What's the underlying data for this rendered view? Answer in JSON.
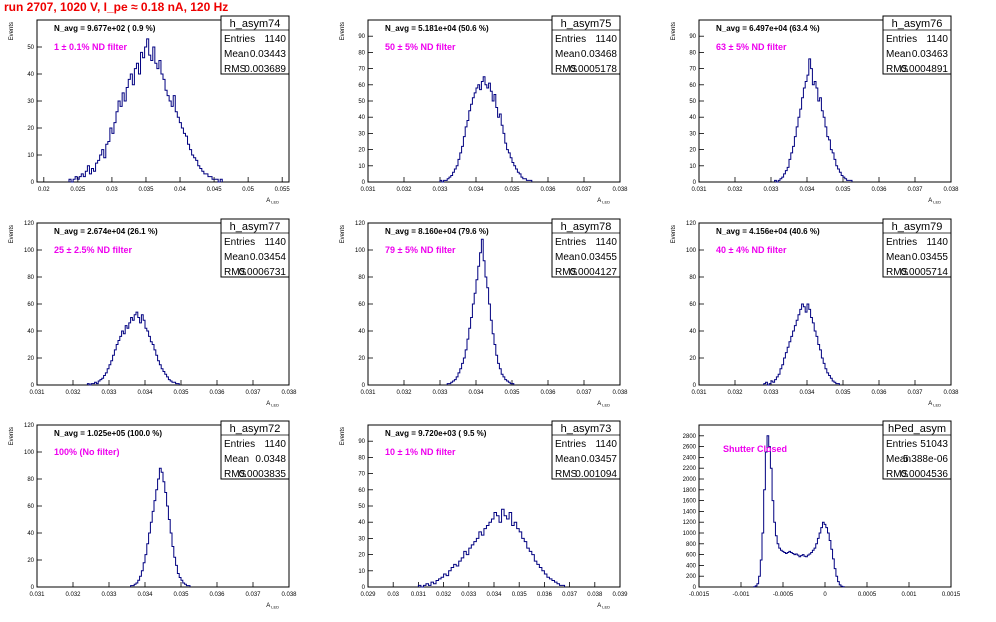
{
  "run_title": "run 2707,  1020 V, I_pe ≈ 0.18 nA, 120 Hz",
  "colors": {
    "title": "#ee0000",
    "annotation": "#ee00ee",
    "histogram": "#000080",
    "axis": "#000000",
    "background": "#ffffff"
  },
  "chart_data": [
    {
      "type": "histogram",
      "hist_name": "h_asym74",
      "stats": [
        {
          "label": "Entries",
          "value": "1140"
        },
        {
          "label": "Mean",
          "value": "0.03443"
        },
        {
          "label": "RMS",
          "value": "0.003689"
        }
      ],
      "navg": "N_avg = 9.677e+02 ( 0.9 %)",
      "filter": "1 ± 0.1% ND filter",
      "ylabel": "Events",
      "xlabel": "A",
      "xlabel_sub": "LED",
      "xlim": [
        0.019,
        0.056
      ],
      "ylim": [
        0,
        60
      ],
      "xticks": [
        0.02,
        0.025,
        0.03,
        0.035,
        0.04,
        0.045,
        0.05,
        0.055
      ],
      "xtick_labels": [
        "0.02",
        "0.025",
        "0.03",
        "0.035",
        "0.04",
        "0.045",
        "0.05",
        "0.055"
      ],
      "yticks": [
        0,
        10,
        20,
        30,
        40,
        50
      ],
      "ytick_labels": [
        "0",
        "10",
        "20",
        "30",
        "40",
        "50"
      ],
      "bins": {
        "start": 0.0237,
        "width": 0.0003,
        "values": [
          1,
          0,
          1,
          2,
          1,
          2,
          3,
          2,
          4,
          6,
          3,
          5,
          4,
          7,
          8,
          10,
          12,
          9,
          14,
          15,
          20,
          18,
          22,
          26,
          30,
          28,
          33,
          30,
          35,
          38,
          40,
          36,
          42,
          44,
          40,
          48,
          46,
          50,
          53,
          47,
          45,
          50,
          44,
          42,
          45,
          40,
          38,
          34,
          32,
          30,
          28,
          32,
          26,
          24,
          22,
          20,
          18,
          17,
          14,
          12,
          10,
          9,
          8,
          6,
          5,
          4,
          3,
          3,
          2,
          2,
          1,
          1,
          1,
          0,
          1
        ]
      }
    },
    {
      "type": "histogram",
      "hist_name": "h_asym75",
      "stats": [
        {
          "label": "Entries",
          "value": "1140"
        },
        {
          "label": "Mean",
          "value": "0.03468"
        },
        {
          "label": "RMS",
          "value": "0.0005178"
        }
      ],
      "navg": "N_avg = 5.181e+04 (50.6 %)",
      "filter": "50 ± 5% ND filter",
      "ylabel": "Events",
      "xlabel": "A",
      "xlabel_sub": "LED",
      "xlim": [
        0.031,
        0.038
      ],
      "ylim": [
        0,
        100
      ],
      "xticks": [
        0.031,
        0.032,
        0.033,
        0.034,
        0.035,
        0.036,
        0.037,
        0.038
      ],
      "xtick_labels": [
        "0.031",
        "0.032",
        "0.033",
        "0.034",
        "0.035",
        "0.036",
        "0.037",
        "0.038"
      ],
      "yticks": [
        0,
        10,
        20,
        30,
        40,
        50,
        60,
        70,
        80,
        90
      ],
      "ytick_labels": [
        "0",
        "10",
        "20",
        "30",
        "40",
        "50",
        "60",
        "70",
        "80",
        "90"
      ],
      "bins": {
        "start": 0.033,
        "width": 5e-05,
        "values": [
          1,
          0,
          1,
          1,
          2,
          3,
          4,
          6,
          8,
          10,
          14,
          18,
          22,
          28,
          34,
          38,
          44,
          48,
          52,
          55,
          58,
          60,
          57,
          62,
          65,
          60,
          58,
          61,
          56,
          50,
          54,
          46,
          40,
          42,
          35,
          30,
          24,
          20,
          18,
          15,
          12,
          10,
          8,
          6,
          5,
          3,
          2,
          2,
          1,
          1,
          1
        ]
      }
    },
    {
      "type": "histogram",
      "hist_name": "h_asym76",
      "stats": [
        {
          "label": "Entries",
          "value": "1140"
        },
        {
          "label": "Mean",
          "value": "0.03463"
        },
        {
          "label": "RMS",
          "value": "0.0004891"
        }
      ],
      "navg": "N_avg = 6.497e+04 (63.4 %)",
      "filter": "63 ± 5% ND filter",
      "ylabel": "Events",
      "xlabel": "A",
      "xlabel_sub": "LED",
      "xlim": [
        0.031,
        0.038
      ],
      "ylim": [
        0,
        100
      ],
      "xticks": [
        0.031,
        0.032,
        0.033,
        0.034,
        0.035,
        0.036,
        0.037,
        0.038
      ],
      "xtick_labels": [
        "0.031",
        "0.032",
        "0.033",
        "0.034",
        "0.035",
        "0.036",
        "0.037",
        "0.038"
      ],
      "yticks": [
        0,
        10,
        20,
        30,
        40,
        50,
        60,
        70,
        80,
        90
      ],
      "ytick_labels": [
        "0",
        "10",
        "20",
        "30",
        "40",
        "50",
        "60",
        "70",
        "80",
        "90"
      ],
      "bins": {
        "start": 0.0331,
        "width": 5e-05,
        "values": [
          1,
          0,
          1,
          2,
          3,
          5,
          7,
          9,
          14,
          18,
          22,
          28,
          34,
          40,
          45,
          52,
          58,
          62,
          66,
          76,
          70,
          60,
          62,
          58,
          50,
          52,
          44,
          40,
          34,
          28,
          26,
          20,
          18,
          14,
          10,
          8,
          6,
          4,
          3,
          2,
          1,
          1,
          1
        ]
      }
    },
    {
      "type": "histogram",
      "hist_name": "h_asym77",
      "stats": [
        {
          "label": "Entries",
          "value": "1140"
        },
        {
          "label": "Mean",
          "value": "0.03454"
        },
        {
          "label": "RMS",
          "value": "0.0006731"
        }
      ],
      "navg": "N_avg = 2.674e+04 (26.1 %)",
      "filter": "25 ± 2.5% ND filter",
      "ylabel": "Events",
      "xlabel": "A",
      "xlabel_sub": "LED",
      "xlim": [
        0.031,
        0.038
      ],
      "ylim": [
        0,
        120
      ],
      "xticks": [
        0.031,
        0.032,
        0.033,
        0.034,
        0.035,
        0.036,
        0.037,
        0.038
      ],
      "xtick_labels": [
        "0.031",
        "0.032",
        "0.033",
        "0.034",
        "0.035",
        "0.036",
        "0.037",
        "0.038"
      ],
      "yticks": [
        0,
        20,
        40,
        60,
        80,
        100,
        120
      ],
      "ytick_labels": [
        "0",
        "20",
        "40",
        "60",
        "80",
        "100",
        "120"
      ],
      "bins": {
        "start": 0.0324,
        "width": 5e-05,
        "values": [
          1,
          0,
          1,
          1,
          2,
          1,
          3,
          4,
          5,
          7,
          9,
          12,
          15,
          18,
          22,
          26,
          30,
          33,
          36,
          40,
          38,
          44,
          42,
          46,
          50,
          48,
          52,
          54,
          50,
          46,
          52,
          48,
          42,
          40,
          36,
          32,
          30,
          26,
          22,
          18,
          15,
          12,
          10,
          8,
          6,
          4,
          3,
          2,
          2,
          1,
          1
        ]
      }
    },
    {
      "type": "histogram",
      "hist_name": "h_asym78",
      "stats": [
        {
          "label": "Entries",
          "value": "1140"
        },
        {
          "label": "Mean",
          "value": "0.03455"
        },
        {
          "label": "RMS",
          "value": "0.0004127"
        }
      ],
      "navg": "N_avg = 8.160e+04 (79.6 %)",
      "filter": "79 ± 5% ND filter",
      "ylabel": "Events",
      "xlabel": "A",
      "xlabel_sub": "LED",
      "xlim": [
        0.031,
        0.038
      ],
      "ylim": [
        0,
        120
      ],
      "xticks": [
        0.031,
        0.032,
        0.033,
        0.034,
        0.035,
        0.036,
        0.037,
        0.038
      ],
      "xtick_labels": [
        "0.031",
        "0.032",
        "0.033",
        "0.034",
        "0.035",
        "0.036",
        "0.037",
        "0.038"
      ],
      "yticks": [
        0,
        20,
        40,
        60,
        80,
        100,
        120
      ],
      "ytick_labels": [
        "0",
        "20",
        "40",
        "60",
        "80",
        "100",
        "120"
      ],
      "bins": {
        "start": 0.0332,
        "width": 5e-05,
        "values": [
          1,
          1,
          2,
          3,
          4,
          6,
          9,
          12,
          16,
          20,
          26,
          34,
          42,
          50,
          60,
          68,
          78,
          88,
          98,
          108,
          92,
          80,
          72,
          60,
          48,
          38,
          30,
          22,
          16,
          12,
          8,
          6,
          4,
          3,
          2,
          1,
          1
        ]
      }
    },
    {
      "type": "histogram",
      "hist_name": "h_asym79",
      "stats": [
        {
          "label": "Entries",
          "value": "1140"
        },
        {
          "label": "Mean",
          "value": "0.03455"
        },
        {
          "label": "RMS",
          "value": "0.0005714"
        }
      ],
      "navg": "N_avg = 4.156e+04 (40.6 %)",
      "filter": "40 ± 4% ND filter",
      "ylabel": "Events",
      "xlabel": "A",
      "xlabel_sub": "LED",
      "xlim": [
        0.031,
        0.038
      ],
      "ylim": [
        0,
        120
      ],
      "xticks": [
        0.031,
        0.032,
        0.033,
        0.034,
        0.035,
        0.036,
        0.037,
        0.038
      ],
      "xtick_labels": [
        "0.031",
        "0.032",
        "0.033",
        "0.034",
        "0.035",
        "0.036",
        "0.037",
        "0.038"
      ],
      "yticks": [
        0,
        20,
        40,
        60,
        80,
        100,
        120
      ],
      "ytick_labels": [
        "0",
        "20",
        "40",
        "60",
        "80",
        "100",
        "120"
      ],
      "bins": {
        "start": 0.0328,
        "width": 5e-05,
        "values": [
          1,
          2,
          0,
          1,
          3,
          2,
          4,
          6,
          8,
          12,
          15,
          20,
          24,
          28,
          32,
          36,
          40,
          44,
          48,
          52,
          56,
          60,
          58,
          54,
          60,
          56,
          50,
          46,
          40,
          36,
          30,
          26,
          20,
          16,
          12,
          9,
          7,
          5,
          3,
          2,
          1,
          1
        ]
      }
    },
    {
      "type": "histogram",
      "hist_name": "h_asym72",
      "stats": [
        {
          "label": "Entries",
          "value": "1140"
        },
        {
          "label": "Mean",
          "value": "0.0348"
        },
        {
          "label": "RMS",
          "value": "0.0003835"
        }
      ],
      "navg": "N_avg = 1.025e+05 (100.0 %)",
      "filter": "100% (No filter)",
      "ylabel": "Events",
      "xlabel": "A",
      "xlabel_sub": "LED",
      "xlim": [
        0.031,
        0.038
      ],
      "ylim": [
        0,
        120
      ],
      "xticks": [
        0.031,
        0.032,
        0.033,
        0.034,
        0.035,
        0.036,
        0.037,
        0.038
      ],
      "xtick_labels": [
        "0.031",
        "0.032",
        "0.033",
        "0.034",
        "0.035",
        "0.036",
        "0.037",
        "0.038"
      ],
      "yticks": [
        0,
        20,
        40,
        60,
        80,
        100,
        120
      ],
      "ytick_labels": [
        "0",
        "20",
        "40",
        "60",
        "80",
        "100",
        "120"
      ],
      "bins": {
        "start": 0.0336,
        "width": 5e-05,
        "values": [
          1,
          1,
          2,
          3,
          5,
          8,
          12,
          18,
          24,
          32,
          40,
          48,
          56,
          64,
          72,
          80,
          88,
          85,
          78,
          70,
          60,
          50,
          40,
          30,
          22,
          16,
          10,
          7,
          5,
          3,
          2,
          1,
          1
        ]
      }
    },
    {
      "type": "histogram",
      "hist_name": "h_asym73",
      "stats": [
        {
          "label": "Entries",
          "value": "1140"
        },
        {
          "label": "Mean",
          "value": "0.03457"
        },
        {
          "label": "RMS",
          "value": "0.001094"
        }
      ],
      "navg": "N_avg = 9.720e+03 ( 9.5 %)",
      "filter": "10 ± 1% ND filter",
      "ylabel": "Events",
      "xlabel": "A",
      "xlabel_sub": "LED",
      "xlim": [
        0.029,
        0.039
      ],
      "ylim": [
        0,
        100
      ],
      "xticks": [
        0.029,
        0.03,
        0.031,
        0.032,
        0.033,
        0.034,
        0.035,
        0.036,
        0.037,
        0.038,
        0.039
      ],
      "xtick_labels": [
        "0.029",
        "0.03",
        "0.031",
        "0.032",
        "0.033",
        "0.034",
        "0.035",
        "0.036",
        "0.037",
        "0.038",
        "0.039"
      ],
      "yticks": [
        0,
        10,
        20,
        30,
        40,
        50,
        60,
        70,
        80,
        90
      ],
      "ytick_labels": [
        "0",
        "10",
        "20",
        "30",
        "40",
        "50",
        "60",
        "70",
        "80",
        "90"
      ],
      "bins": {
        "start": 0.031,
        "width": 0.0001,
        "values": [
          1,
          0,
          1,
          2,
          1,
          3,
          2,
          4,
          5,
          6,
          8,
          7,
          10,
          12,
          14,
          13,
          16,
          18,
          22,
          20,
          24,
          26,
          28,
          30,
          34,
          32,
          36,
          38,
          40,
          42,
          46,
          44,
          40,
          48,
          44,
          42,
          46,
          38,
          40,
          36,
          34,
          30,
          28,
          24,
          22,
          20,
          16,
          14,
          12,
          10,
          8,
          6,
          5,
          4,
          3,
          2,
          1,
          1
        ]
      }
    },
    {
      "type": "histogram",
      "hist_name": "hPed_asym",
      "stats": [
        {
          "label": "Entries",
          "value": "51043"
        },
        {
          "label": "Mean",
          "value": "5.388e-06"
        },
        {
          "label": "RMS",
          "value": "0.0004536"
        }
      ],
      "navg": "",
      "filter": "Shutter Closed",
      "ylabel": "",
      "xlabel": "",
      "xlabel_sub": "",
      "xlim": [
        -0.0015,
        0.0015
      ],
      "ylim": [
        0,
        3000
      ],
      "xticks": [
        -0.0015,
        -0.001,
        -0.0005,
        0,
        0.0005,
        0.001,
        0.0015
      ],
      "xtick_labels": [
        "-0.0015",
        "-0.001",
        "-0.0005",
        "0",
        "0.0005",
        "0.001",
        "0.0015"
      ],
      "yticks": [
        0,
        200,
        400,
        600,
        800,
        1000,
        1200,
        1400,
        1600,
        1800,
        2000,
        2200,
        2400,
        2600,
        2800
      ],
      "ytick_labels": [
        "0",
        "200",
        "400",
        "600",
        "800",
        "1000",
        "1200",
        "1400",
        "1600",
        "1800",
        "2000",
        "2200",
        "2400",
        "2600",
        "2800"
      ],
      "bins": {
        "start": -0.00085,
        "width": 2e-05,
        "values": [
          5,
          20,
          60,
          200,
          500,
          1000,
          1800,
          2500,
          2800,
          2600,
          2200,
          1600,
          1200,
          950,
          800,
          720,
          680,
          660,
          640,
          620,
          640,
          660,
          640,
          620,
          600,
          610,
          590,
          560,
          580,
          600,
          570,
          560,
          590,
          610,
          640,
          680,
          720,
          800,
          900,
          1000,
          1100,
          1200,
          1160,
          1100,
          1000,
          860,
          700,
          520,
          340,
          200,
          100,
          40,
          15,
          5
        ]
      }
    }
  ]
}
